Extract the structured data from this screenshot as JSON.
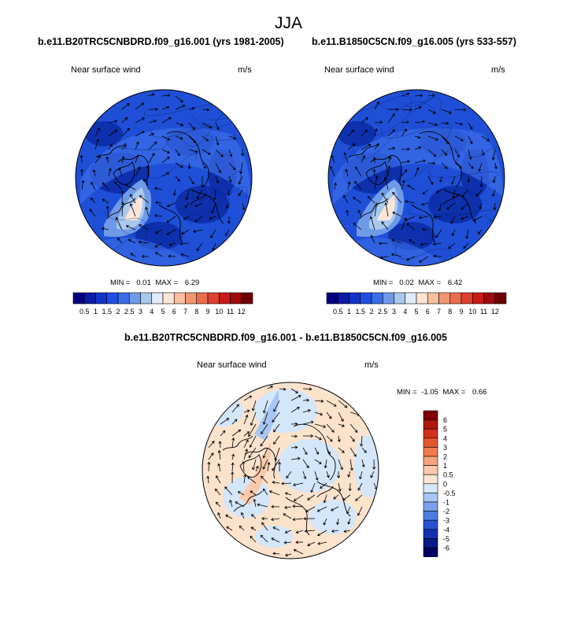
{
  "header": {
    "title": "JJA"
  },
  "panels": [
    {
      "title": "b.e11.B20TRC5CNBDRD.f09_g16.001 (yrs 1981-2005)",
      "variable": "Near surface wind",
      "units": "m/s",
      "min_label": "MIN =",
      "min_value": "0.01",
      "max_label": "MAX =",
      "max_value": "6.29"
    },
    {
      "title": "b.e11.B1850C5CN.f09_g16.005 (yrs 533-557)",
      "variable": "Near surface wind",
      "units": "m/s",
      "min_label": "MIN =",
      "min_value": "0.02",
      "max_label": "MAX =",
      "max_value": "6.42"
    },
    {
      "title": "b.e11.B20TRC5CNBDRD.f09_g16.001 - b.e11.B1850C5CN.f09_g16.005",
      "variable": "Near surface wind",
      "units": "m/s",
      "min_label": "MIN =",
      "min_value": "-1.05",
      "max_label": "MAX =",
      "max_value": "0.66"
    }
  ],
  "chart_data": [
    {
      "type": "heatmap",
      "projection": "north polar stereographic",
      "title": "b.e11.B20TRC5CNBDRD.f09_g16.001 (yrs 1981-2005)",
      "field": "Near surface wind",
      "units": "m/s",
      "min": 0.01,
      "max": 6.29,
      "colorbar_levels": [
        "0.5",
        "1",
        "1.5",
        "2",
        "2.5",
        "3",
        "4",
        "5",
        "6",
        "7",
        "8",
        "9",
        "10",
        "11",
        "12"
      ],
      "colorbar_colors": [
        "#00007f",
        "#0a1ca8",
        "#1432c8",
        "#1f4ee0",
        "#3a6ee8",
        "#6f9ae8",
        "#a9c8ee",
        "#e2ecf8",
        "#fde6d8",
        "#f8bfa0",
        "#f29672",
        "#ea6c4e",
        "#df4030",
        "#c81a18",
        "#a00c0c",
        "#6f0000"
      ]
    },
    {
      "type": "heatmap",
      "projection": "north polar stereographic",
      "title": "b.e11.B1850C5CN.f09_g16.005 (yrs 533-557)",
      "field": "Near surface wind",
      "units": "m/s",
      "min": 0.02,
      "max": 6.42,
      "colorbar_levels": [
        "0.5",
        "1",
        "1.5",
        "2",
        "2.5",
        "3",
        "4",
        "5",
        "6",
        "7",
        "8",
        "9",
        "10",
        "11",
        "12"
      ],
      "colorbar_colors": [
        "#00007f",
        "#0a1ca8",
        "#1432c8",
        "#1f4ee0",
        "#3a6ee8",
        "#6f9ae8",
        "#a9c8ee",
        "#e2ecf8",
        "#fde6d8",
        "#f8bfa0",
        "#f29672",
        "#ea6c4e",
        "#df4030",
        "#c81a18",
        "#a00c0c",
        "#6f0000"
      ]
    },
    {
      "type": "heatmap",
      "projection": "north polar stereographic",
      "title": "b.e11.B20TRC5CNBDRD.f09_g16.001 - b.e11.B1850C5CN.f09_g16.005",
      "field": "Near surface wind",
      "units": "m/s",
      "min": -1.05,
      "max": 0.66,
      "colorbar_levels": [
        "6",
        "5",
        "4",
        "3",
        "2",
        "1",
        "0.5",
        "0",
        "-0.5",
        "-1",
        "-2",
        "-3",
        "-4",
        "-5",
        "-6"
      ],
      "colorbar_colors": [
        "#7f0000",
        "#b0160e",
        "#d1321c",
        "#e4562e",
        "#ef7c4e",
        "#f6a27c",
        "#fbc9aa",
        "#fde6d2",
        "#d6e8fa",
        "#a8c6f4",
        "#7aa2ec",
        "#4d7ce2",
        "#2752d2",
        "#1230b0",
        "#081888",
        "#000066"
      ]
    }
  ],
  "style": {
    "map_fill_low": "#1f4fd6",
    "map_fill_dark": "#0c2aa6",
    "diff_pos": "#fde2cc",
    "diff_neg": "#d4e6fa"
  }
}
